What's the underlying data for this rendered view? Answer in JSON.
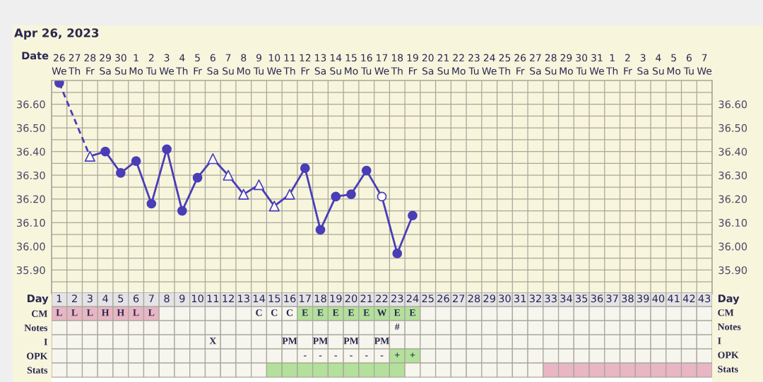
{
  "chart_data": [
    {
      "type": "line",
      "title": "Apr 26, 2023",
      "xlabel": "Date",
      "categories": [
        "26\nWe",
        "27\nTh",
        "28\nFr",
        "29\nSa",
        "30\nSu",
        "1\nMo",
        "2\nTu",
        "3\nWe",
        "4\nTh",
        "5\nFr",
        "6\nSa",
        "7\nSu",
        "8\nMo",
        "9\nTu",
        "10\nWe",
        "11\nTh",
        "12\nFr",
        "13\nSa",
        "14\nSu",
        "15\nMo",
        "16\nTu",
        "17\nWe",
        "18\nTh",
        "19\nFr",
        "20\nSa",
        "21\nSu",
        "22\nMo",
        "23\nTu",
        "24\nWe",
        "25\nTh",
        "26\nFr",
        "27\nSa",
        "28\nSu",
        "29\nMo",
        "30\nTu",
        "31\nWe",
        "1\nTh",
        "2\nFr",
        "3\nSa",
        "4\nSu",
        "5\nMo",
        "6\nTu",
        "7\nWe"
      ],
      "ylim": [
        35.8,
        36.7
      ],
      "yticks": [
        {
          "value": 35.85,
          "label": null
        },
        {
          "value": 35.9,
          "label": "35.90"
        },
        {
          "value": 35.95,
          "label": null
        },
        {
          "value": 36.0,
          "label": "36.00"
        },
        {
          "value": 36.05,
          "label": null
        },
        {
          "value": 36.1,
          "label": "36.10"
        },
        {
          "value": 36.15,
          "label": null
        },
        {
          "value": 36.2,
          "label": "36.20"
        },
        {
          "value": 36.25,
          "label": null
        },
        {
          "value": 36.3,
          "label": "36.30"
        },
        {
          "value": 36.35,
          "label": null
        },
        {
          "value": 36.4,
          "label": "36.40"
        },
        {
          "value": 36.45,
          "label": null
        },
        {
          "value": 36.5,
          "label": "36.50"
        },
        {
          "value": 36.55,
          "label": null
        },
        {
          "value": 36.6,
          "label": "36.60"
        },
        {
          "value": 36.65,
          "label": null
        }
      ],
      "y2lim": [
        35.8,
        36.7
      ],
      "y2ticks": [
        {
          "value": 35.9,
          "label": "35.90"
        },
        {
          "value": 36.0,
          "label": "36.00"
        },
        {
          "value": 36.1,
          "label": "36.10"
        },
        {
          "value": 36.2,
          "label": "36.20"
        },
        {
          "value": 36.3,
          "label": "36.30"
        },
        {
          "value": 36.4,
          "label": "36.40"
        },
        {
          "value": 36.5,
          "label": "36.50"
        },
        {
          "value": 36.6,
          "label": "36.60"
        }
      ],
      "grid": true,
      "series": [
        {
          "type": "line",
          "line_style": "solid",
          "marker": "none",
          "color": "#4a3db8",
          "values": [
            null,
            null,
            36.38,
            36.4,
            36.31,
            36.36,
            36.18,
            36.41,
            36.15,
            36.29,
            36.37,
            36.3,
            36.22,
            36.26,
            36.17,
            36.22,
            36.33,
            36.07,
            36.21,
            36.22,
            36.32,
            36.21,
            35.97,
            36.13,
            null,
            null,
            null,
            null,
            null,
            null,
            null,
            null,
            null,
            null,
            null,
            null,
            null,
            null,
            null,
            null,
            null,
            null,
            null
          ]
        },
        {
          "type": "line",
          "line_style": "dashed",
          "marker": "none",
          "color": "#4a3db8",
          "values": [
            36.69,
            null,
            36.38,
            null,
            null,
            null,
            null,
            null,
            null,
            null,
            null,
            null,
            null,
            null,
            null,
            null,
            null,
            null,
            null,
            null,
            null,
            null,
            null,
            null,
            null,
            null,
            null,
            null,
            null,
            null,
            null,
            null,
            null,
            null,
            null,
            null,
            null,
            null,
            null,
            null,
            null,
            null,
            null
          ]
        },
        {
          "type": "scatter",
          "marker": "circle",
          "color": "#4a3db8",
          "values": [
            36.69,
            null,
            null,
            36.4,
            36.31,
            36.36,
            36.18,
            36.41,
            36.15,
            36.29,
            null,
            null,
            null,
            null,
            null,
            null,
            36.33,
            36.07,
            36.21,
            36.22,
            36.32,
            null,
            35.97,
            36.13,
            null,
            null,
            null,
            null,
            null,
            null,
            null,
            null,
            null,
            null,
            null,
            null,
            null,
            null,
            null,
            null,
            null,
            null,
            null
          ]
        },
        {
          "type": "scatter",
          "marker": "triangle",
          "color": "#ffffff",
          "values": [
            null,
            null,
            36.38,
            null,
            null,
            null,
            null,
            null,
            null,
            null,
            36.37,
            36.3,
            36.22,
            36.26,
            36.17,
            36.22,
            null,
            null,
            null,
            null,
            null,
            null,
            null,
            null,
            null,
            null,
            null,
            null,
            null,
            null,
            null,
            null,
            null,
            null,
            null,
            null,
            null,
            null,
            null,
            null,
            null,
            null,
            null
          ]
        },
        {
          "type": "scatter",
          "marker": "circle",
          "color": "#ffffff",
          "values": [
            null,
            null,
            null,
            null,
            null,
            null,
            null,
            null,
            null,
            null,
            null,
            null,
            null,
            null,
            null,
            null,
            null,
            null,
            null,
            null,
            null,
            36.21,
            null,
            null,
            null,
            null,
            null,
            null,
            null,
            null,
            null,
            null,
            null,
            null,
            null,
            null,
            null,
            null,
            null,
            null,
            null,
            null,
            null
          ]
        }
      ]
    },
    {
      "type": "heatmap",
      "xlabel": "Day",
      "categories": [
        "1",
        "2",
        "3",
        "4",
        "5",
        "6",
        "7",
        "8",
        "9",
        "10",
        "11",
        "12",
        "13",
        "14",
        "15",
        "16",
        "17",
        "18",
        "19",
        "20",
        "21",
        "22",
        "23",
        "24",
        "25",
        "26",
        "27",
        "28",
        "29",
        "30",
        "31",
        "32",
        "33",
        "34",
        "35",
        "36",
        "37",
        "38",
        "39",
        "40",
        "41",
        "42",
        "43"
      ],
      "y_categories": [
        "CM",
        "Notes",
        "I",
        "OPK",
        "Stats"
      ],
      "y2_categories": [
        "CM",
        "Notes",
        "I",
        "OPK",
        "Stats"
      ],
      "cells": [
        [
          null,
          null,
          null,
          null,
          null,
          null,
          null,
          null,
          null,
          null,
          null,
          null,
          null,
          null,
          null,
          null,
          null,
          null,
          null,
          null,
          null,
          null,
          null,
          null,
          null,
          null,
          null,
          null,
          null,
          null,
          null,
          null,
          null,
          null,
          null,
          null,
          null,
          null,
          null,
          null,
          null,
          null,
          null
        ],
        [
          null,
          null,
          null,
          null,
          null,
          null,
          null,
          null,
          null,
          null,
          null,
          null,
          null,
          null,
          null,
          null,
          null,
          null,
          null,
          null,
          null,
          null,
          null,
          null,
          null,
          null,
          null,
          null,
          null,
          null,
          null,
          null,
          null,
          null,
          null,
          null,
          null,
          null,
          null,
          null,
          null,
          null,
          null
        ],
        [
          null,
          null,
          null,
          null,
          null,
          null,
          null,
          null,
          null,
          null,
          null,
          null,
          null,
          null,
          null,
          null,
          null,
          null,
          null,
          null,
          null,
          null,
          null,
          null,
          null,
          null,
          null,
          null,
          null,
          null,
          null,
          null,
          null,
          null,
          null,
          null,
          null,
          null,
          null,
          null,
          null,
          null,
          null
        ],
        [
          null,
          null,
          null,
          null,
          null,
          null,
          null,
          null,
          null,
          null,
          null,
          null,
          null,
          null,
          null,
          null,
          null,
          null,
          null,
          null,
          null,
          null,
          null,
          null,
          null,
          null,
          null,
          null,
          null,
          null,
          null,
          null,
          null,
          null,
          null,
          null,
          null,
          null,
          null,
          null,
          null,
          null,
          null
        ],
        [
          null,
          null,
          null,
          null,
          null,
          null,
          null,
          null,
          null,
          null,
          null,
          null,
          null,
          null,
          null,
          null,
          null,
          null,
          null,
          null,
          null,
          null,
          null,
          null,
          null,
          null,
          null,
          null,
          null,
          null,
          null,
          null,
          null,
          null,
          null,
          null,
          null,
          null,
          null,
          null,
          null,
          null,
          null
        ]
      ],
      "cell_labels": [
        [
          "L",
          "L",
          "L",
          "H",
          "H",
          "L",
          "L",
          null,
          null,
          null,
          null,
          null,
          null,
          "C",
          "C",
          "C",
          "E",
          "E",
          "E",
          "E",
          "E",
          "W",
          "E",
          "E",
          null,
          null,
          null,
          null,
          null,
          null,
          null,
          null,
          null,
          null,
          null,
          null,
          null,
          null,
          null,
          null,
          null,
          null,
          null
        ],
        [
          null,
          null,
          null,
          null,
          null,
          null,
          null,
          null,
          null,
          null,
          null,
          null,
          null,
          null,
          null,
          null,
          null,
          null,
          null,
          null,
          null,
          null,
          "#",
          null,
          null,
          null,
          null,
          null,
          null,
          null,
          null,
          null,
          null,
          null,
          null,
          null,
          null,
          null,
          null,
          null,
          null,
          null,
          null
        ],
        [
          null,
          null,
          null,
          null,
          null,
          null,
          null,
          null,
          null,
          null,
          "X",
          null,
          null,
          null,
          null,
          "PM",
          null,
          "PM",
          null,
          "PM",
          null,
          "PM",
          null,
          null,
          null,
          null,
          null,
          null,
          null,
          null,
          null,
          null,
          null,
          null,
          null,
          null,
          null,
          null,
          null,
          null,
          null,
          null,
          null
        ],
        [
          null,
          null,
          null,
          null,
          null,
          null,
          null,
          null,
          null,
          null,
          null,
          null,
          null,
          null,
          null,
          null,
          "-",
          "-",
          "-",
          "-",
          "-",
          "-",
          "+",
          "+",
          null,
          null,
          null,
          null,
          null,
          null,
          null,
          null,
          null,
          null,
          null,
          null,
          null,
          null,
          null,
          null,
          null,
          null,
          null
        ],
        [
          null,
          null,
          null,
          null,
          null,
          null,
          null,
          null,
          null,
          null,
          null,
          null,
          null,
          null,
          null,
          null,
          null,
          null,
          null,
          null,
          null,
          null,
          null,
          null,
          null,
          null,
          null,
          null,
          null,
          null,
          null,
          null,
          null,
          null,
          null,
          null,
          null,
          null,
          null,
          null,
          null,
          null,
          null
        ]
      ],
      "colors": [
        [
          "#e8b6c4",
          "#e8b6c4",
          "#e8b6c4",
          "#e8b6c4",
          "#e8b6c4",
          "#e8b6c4",
          "#e8b6c4",
          "#f6f6ee",
          "#f6f6ee",
          "#f6f6ee",
          "#f6f6ee",
          "#f6f6ee",
          "#f6f6ee",
          "#f6f6ee",
          "#f6f6ee",
          "#f6f6ee",
          "#b3e09b",
          "#b3e09b",
          "#b3e09b",
          "#b3e09b",
          "#b3e09b",
          "#b3e09b",
          "#b3e09b",
          "#b3e09b",
          "#f6f6ee",
          "#f6f6ee",
          "#f6f6ee",
          "#f6f6ee",
          "#f6f6ee",
          "#f6f6ee",
          "#f6f6ee",
          "#f6f6ee",
          "#f6f6ee",
          "#f6f6ee",
          "#f6f6ee",
          "#f6f6ee",
          "#f6f6ee",
          "#f6f6ee",
          "#f6f6ee",
          "#f6f6ee",
          "#f6f6ee",
          "#f6f6ee",
          "#f6f6ee"
        ],
        [
          "#f6f6ee",
          "#f6f6ee",
          "#f6f6ee",
          "#f6f6ee",
          "#f6f6ee",
          "#f6f6ee",
          "#f6f6ee",
          "#f6f6ee",
          "#f6f6ee",
          "#f6f6ee",
          "#f6f6ee",
          "#f6f6ee",
          "#f6f6ee",
          "#f6f6ee",
          "#f6f6ee",
          "#f6f6ee",
          "#f6f6ee",
          "#f6f6ee",
          "#f6f6ee",
          "#f6f6ee",
          "#f6f6ee",
          "#f6f6ee",
          "#f6f6ee",
          "#f6f6ee",
          "#f6f6ee",
          "#f6f6ee",
          "#f6f6ee",
          "#f6f6ee",
          "#f6f6ee",
          "#f6f6ee",
          "#f6f6ee",
          "#f6f6ee",
          "#f6f6ee",
          "#f6f6ee",
          "#f6f6ee",
          "#f6f6ee",
          "#f6f6ee",
          "#f6f6ee",
          "#f6f6ee",
          "#f6f6ee",
          "#f6f6ee",
          "#f6f6ee",
          "#f6f6ee"
        ],
        [
          "#f6f6ee",
          "#f6f6ee",
          "#f6f6ee",
          "#f6f6ee",
          "#f6f6ee",
          "#f6f6ee",
          "#f6f6ee",
          "#f6f6ee",
          "#f6f6ee",
          "#f6f6ee",
          "#f6f6ee",
          "#f6f6ee",
          "#f6f6ee",
          "#f6f6ee",
          "#f6f6ee",
          "#f6f6ee",
          "#f6f6ee",
          "#f6f6ee",
          "#f6f6ee",
          "#f6f6ee",
          "#f6f6ee",
          "#f6f6ee",
          "#f6f6ee",
          "#f6f6ee",
          "#f6f6ee",
          "#f6f6ee",
          "#f6f6ee",
          "#f6f6ee",
          "#f6f6ee",
          "#f6f6ee",
          "#f6f6ee",
          "#f6f6ee",
          "#f6f6ee",
          "#f6f6ee",
          "#f6f6ee",
          "#f6f6ee",
          "#f6f6ee",
          "#f6f6ee",
          "#f6f6ee",
          "#f6f6ee",
          "#f6f6ee",
          "#f6f6ee",
          "#f6f6ee"
        ],
        [
          "#f6f6ee",
          "#f6f6ee",
          "#f6f6ee",
          "#f6f6ee",
          "#f6f6ee",
          "#f6f6ee",
          "#f6f6ee",
          "#f6f6ee",
          "#f6f6ee",
          "#f6f6ee",
          "#f6f6ee",
          "#f6f6ee",
          "#f6f6ee",
          "#f6f6ee",
          "#f6f6ee",
          "#f6f6ee",
          "#f6f6ee",
          "#f6f6ee",
          "#f6f6ee",
          "#f6f6ee",
          "#f6f6ee",
          "#f6f6ee",
          "#b3e09b",
          "#b3e09b",
          "#f6f6ee",
          "#f6f6ee",
          "#f6f6ee",
          "#f6f6ee",
          "#f6f6ee",
          "#f6f6ee",
          "#f6f6ee",
          "#f6f6ee",
          "#f6f6ee",
          "#f6f6ee",
          "#f6f6ee",
          "#f6f6ee",
          "#f6f6ee",
          "#f6f6ee",
          "#f6f6ee",
          "#f6f6ee",
          "#f6f6ee",
          "#f6f6ee",
          "#f6f6ee"
        ],
        [
          "#f6f6ee",
          "#f6f6ee",
          "#f6f6ee",
          "#f6f6ee",
          "#f6f6ee",
          "#f6f6ee",
          "#f6f6ee",
          "#f6f6ee",
          "#f6f6ee",
          "#f6f6ee",
          "#f6f6ee",
          "#f6f6ee",
          "#f6f6ee",
          "#f6f6ee",
          "#b3e09b",
          "#b3e09b",
          "#b3e09b",
          "#b3e09b",
          "#b3e09b",
          "#b3e09b",
          "#b3e09b",
          "#b3e09b",
          "#b3e09b",
          "#f6f6ee",
          "#f6f6ee",
          "#f6f6ee",
          "#f6f6ee",
          "#f6f6ee",
          "#f6f6ee",
          "#f6f6ee",
          "#f6f6ee",
          "#f6f6ee",
          "#e8b6c4",
          "#e8b6c4",
          "#e8b6c4",
          "#e8b6c4",
          "#e8b6c4",
          "#e8b6c4",
          "#e8b6c4",
          "#e8b6c4",
          "#e8b6c4",
          "#e8b6c4",
          "#e8b6c4"
        ]
      ]
    }
  ]
}
